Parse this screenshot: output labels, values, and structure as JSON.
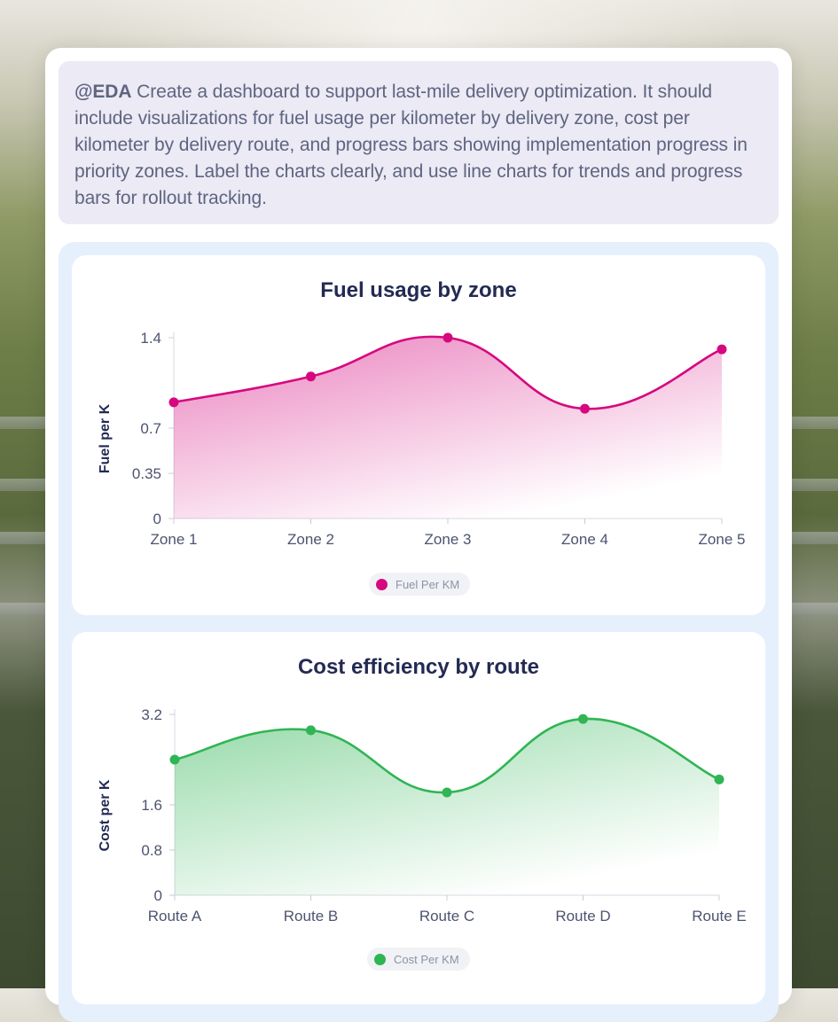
{
  "prompt": {
    "tag": "@EDA",
    "text": " Create a dashboard to support last-mile delivery optimization. It should include visualizations for fuel usage per kilometer by delivery zone, cost per kilometer by delivery route, and progress bars showing implementation progress in priority zones. Label the charts clearly, and use line charts for trends and progress bars for rollout tracking."
  },
  "chart_data": [
    {
      "type": "area",
      "title": "Fuel usage by zone",
      "xlabel": "",
      "ylabel": "Fuel per K",
      "categories": [
        "Zone 1",
        "Zone 2",
        "Zone 3",
        "Zone 4",
        "Zone 5"
      ],
      "y_ticks": [
        "0",
        "0.35",
        "0.7",
        "1.4"
      ],
      "y_tick_values": [
        0,
        0.35,
        0.7,
        1.4
      ],
      "ylim": [
        0,
        1.4
      ],
      "series": [
        {
          "name": "Fuel Per KM",
          "values": [
            0.9,
            1.1,
            1.4,
            0.85,
            1.31
          ],
          "color": "#d6087f"
        }
      ],
      "legend": "bottom-center",
      "grid": false
    },
    {
      "type": "area",
      "title": "Cost efficiency by route",
      "xlabel": "",
      "ylabel": "Cost per K",
      "categories": [
        "Route A",
        "Route B",
        "Route C",
        "Route D",
        "Route E"
      ],
      "y_ticks": [
        "0",
        "0.8",
        "1.6",
        "3.2"
      ],
      "y_tick_values": [
        0,
        0.8,
        1.6,
        3.2
      ],
      "ylim": [
        0,
        3.2
      ],
      "series": [
        {
          "name": "Cost Per KM",
          "values": [
            2.4,
            2.92,
            1.82,
            3.12,
            2.05
          ],
          "color": "#2fb554"
        }
      ],
      "legend": "bottom-center",
      "grid": false
    }
  ]
}
